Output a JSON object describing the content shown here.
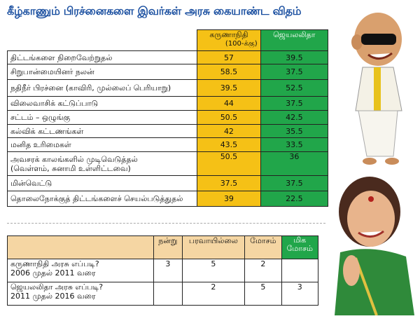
{
  "title": "கீழ்காணும் பிரச்னைகளை இவர்கள் அரசு கையாண்ட விதம்",
  "ratings": {
    "header_k": "கருணாநிதி",
    "header_j": "ஜெயலலிதா",
    "header_note": "(100-க்கு)",
    "rows": [
      {
        "topic": "திட்டங்களை நிறைவேற்றுதல்",
        "k": "57",
        "j": "39.5"
      },
      {
        "topic": "சிறுபான்மையினர் நலன்",
        "k": "58.5",
        "j": "37.5"
      },
      {
        "topic": "நதிநீர் பிரச்னை (காவிரி, முல்லைப் பெரியாறு)",
        "k": "39.5",
        "j": "52.5"
      },
      {
        "topic": "விலைவாசிக் கட்டுப்பாடு",
        "k": "44",
        "j": "37.5"
      },
      {
        "topic": "சட்டம் – ஒழுங்கு",
        "k": "50.5",
        "j": "42.5"
      },
      {
        "topic": "கல்விக் கட்டணங்கள்",
        "k": "42",
        "j": "35.5"
      },
      {
        "topic": "மனித உரிமைகள்",
        "k": "43.5",
        "j": "33.5"
      },
      {
        "topic": "அவசரக் காலங்களில் முடிவெடுத்தல்",
        "topic2": "(வெள்ளம், சுனாமி உள்ளிட்டவை)",
        "k": "50.5",
        "j": "36"
      },
      {
        "topic": "மின்வெட்டு",
        "k": "37.5",
        "j": "37.5"
      },
      {
        "topic": "தொலைநோக்குத் திட்டங்களைச் செயல்படுத்துதல்",
        "k": "39",
        "j": "22.5"
      }
    ]
  },
  "opinion": {
    "headers": [
      "நன்று",
      "பரவாயில்லை",
      "மோசம்",
      "மிக",
      "மோசம்"
    ],
    "rows": [
      {
        "label1": "கருணாநிதி அரசு எப்படி?",
        "label2": "2006 முதல் 2011 வரை",
        "v": [
          "3",
          "5",
          "2",
          ""
        ]
      },
      {
        "label1": "ஜெயலலிதா அரசு எப்படி?",
        "label2": "2011 முதல் 2016 வரை",
        "v": [
          "",
          "2",
          "5",
          "3"
        ]
      }
    ]
  }
}
